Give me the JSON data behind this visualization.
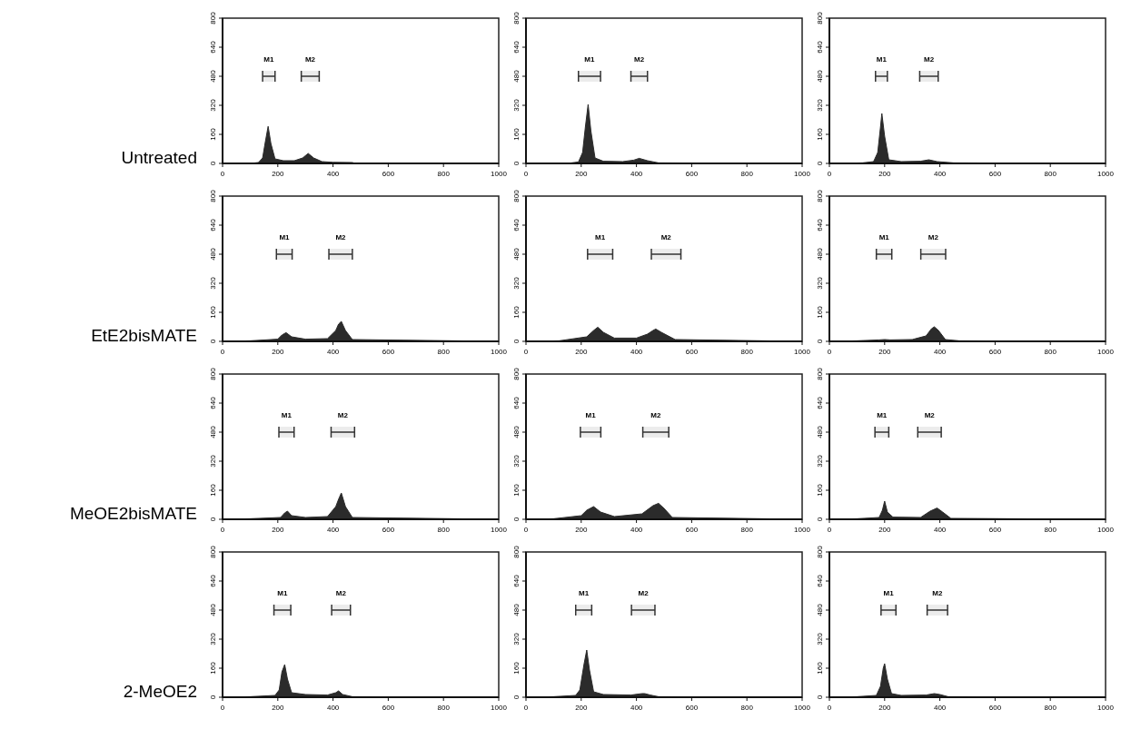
{
  "chart_data": [
    {
      "type": "area",
      "title": "Untreated",
      "color": "#2b2b2b",
      "x": [
        0,
        100,
        130,
        145,
        155,
        165,
        175,
        190,
        220,
        260,
        290,
        310,
        330,
        360,
        400,
        470,
        480,
        1000
      ],
      "values": [
        0,
        0,
        5,
        30,
        120,
        204,
        110,
        25,
        15,
        15,
        30,
        55,
        30,
        10,
        6,
        5,
        0,
        0
      ],
      "xlim": [
        0,
        1000
      ],
      "xticks": [
        0,
        200,
        400,
        600,
        800,
        1000
      ],
      "ylim": [
        0,
        800
      ],
      "yticks": [
        0,
        160,
        320,
        480,
        640,
        800
      ],
      "bands": [
        {
          "axis": "x",
          "from": 145,
          "to": 190,
          "label": "M1"
        },
        {
          "axis": "x",
          "from": 285,
          "to": 350,
          "label": "M2"
        }
      ]
    },
    {
      "type": "area",
      "color": "#2b2b2b",
      "x": [
        0,
        150,
        190,
        205,
        215,
        225,
        235,
        250,
        280,
        350,
        390,
        410,
        440,
        480,
        1000
      ],
      "values": [
        0,
        0,
        8,
        60,
        200,
        325,
        180,
        30,
        12,
        10,
        18,
        28,
        15,
        3,
        0
      ],
      "xlim": [
        0,
        1000
      ],
      "xticks": [
        0,
        200,
        400,
        600,
        800,
        1000
      ],
      "ylim": [
        0,
        800
      ],
      "yticks": [
        0,
        160,
        320,
        480,
        640,
        800
      ],
      "bands": [
        {
          "axis": "x",
          "from": 190,
          "to": 270,
          "label": "M1"
        },
        {
          "axis": "x",
          "from": 380,
          "to": 440,
          "label": "M2"
        }
      ]
    },
    {
      "type": "area",
      "color": "#2b2b2b",
      "x": [
        0,
        120,
        160,
        175,
        185,
        190,
        200,
        215,
        260,
        330,
        360,
        390,
        450,
        1000
      ],
      "values": [
        0,
        3,
        10,
        60,
        200,
        275,
        150,
        20,
        10,
        12,
        20,
        10,
        3,
        0
      ],
      "xlim": [
        0,
        1000
      ],
      "xticks": [
        0,
        200,
        400,
        600,
        800,
        1000
      ],
      "ylim": [
        0,
        800
      ],
      "yticks": [
        0,
        160,
        320,
        480,
        640,
        800
      ],
      "bands": [
        {
          "axis": "x",
          "from": 167,
          "to": 210,
          "label": "M1"
        },
        {
          "axis": "x",
          "from": 327,
          "to": 394,
          "label": "M2"
        }
      ]
    },
    {
      "type": "area",
      "title": "EtE2bisMATE",
      "color": "#2b2b2b",
      "x": [
        0,
        100,
        200,
        215,
        230,
        250,
        300,
        380,
        410,
        420,
        430,
        445,
        470,
        1000
      ],
      "values": [
        0,
        3,
        12,
        35,
        48,
        25,
        12,
        15,
        60,
        95,
        110,
        60,
        10,
        0
      ],
      "xlim": [
        0,
        1000
      ],
      "xticks": [
        0,
        200,
        400,
        600,
        800,
        1000
      ],
      "ylim": [
        0,
        800
      ],
      "yticks": [
        0,
        160,
        320,
        480,
        640,
        800
      ],
      "bands": [
        {
          "axis": "x",
          "from": 195,
          "to": 252,
          "label": "M1"
        },
        {
          "axis": "x",
          "from": 385,
          "to": 470,
          "label": "M2"
        }
      ]
    },
    {
      "type": "area",
      "color": "#2b2b2b",
      "x": [
        0,
        120,
        220,
        245,
        260,
        280,
        320,
        400,
        440,
        460,
        470,
        490,
        540,
        1000
      ],
      "values": [
        0,
        3,
        25,
        60,
        78,
        50,
        18,
        18,
        40,
        60,
        68,
        50,
        10,
        0
      ],
      "xlim": [
        0,
        1000
      ],
      "xticks": [
        0,
        200,
        400,
        600,
        800,
        1000
      ],
      "ylim": [
        0,
        800
      ],
      "yticks": [
        0,
        160,
        320,
        480,
        640,
        800
      ],
      "bands": [
        {
          "axis": "x",
          "from": 223,
          "to": 314,
          "label": "M1"
        },
        {
          "axis": "x",
          "from": 454,
          "to": 561,
          "label": "M2"
        }
      ]
    },
    {
      "type": "area",
      "color": "#2b2b2b",
      "x": [
        0,
        100,
        180,
        200,
        220,
        300,
        350,
        370,
        380,
        395,
        420,
        470,
        1000
      ],
      "values": [
        0,
        3,
        8,
        10,
        8,
        10,
        30,
        70,
        80,
        60,
        10,
        3,
        0
      ],
      "xlim": [
        0,
        1000
      ],
      "xticks": [
        0,
        200,
        400,
        600,
        800,
        1000
      ],
      "ylim": [
        0,
        800
      ],
      "yticks": [
        0,
        160,
        320,
        480,
        640,
        800
      ],
      "bands": [
        {
          "axis": "x",
          "from": 170,
          "to": 226,
          "label": "M1"
        },
        {
          "axis": "x",
          "from": 331,
          "to": 421,
          "label": "M2"
        }
      ]
    },
    {
      "type": "area",
      "title": "MeOE2bisMATE",
      "color": "#2b2b2b",
      "x": [
        0,
        100,
        210,
        225,
        235,
        250,
        300,
        380,
        410,
        420,
        430,
        445,
        470,
        1000
      ],
      "values": [
        0,
        3,
        10,
        35,
        45,
        20,
        10,
        15,
        70,
        110,
        145,
        70,
        10,
        0
      ],
      "xlim": [
        0,
        1000
      ],
      "xticks": [
        0,
        200,
        400,
        600,
        800,
        1000
      ],
      "ylim": [
        0,
        800
      ],
      "yticks": [
        0,
        160,
        320,
        480,
        640,
        800
      ],
      "bands": [
        {
          "axis": "x",
          "from": 204,
          "to": 259,
          "label": "M1"
        },
        {
          "axis": "x",
          "from": 393,
          "to": 478,
          "label": "M2"
        }
      ]
    },
    {
      "type": "area",
      "color": "#2b2b2b",
      "x": [
        0,
        100,
        200,
        220,
        245,
        270,
        320,
        420,
        460,
        480,
        500,
        530,
        1000
      ],
      "values": [
        0,
        3,
        20,
        50,
        70,
        40,
        15,
        30,
        75,
        88,
        60,
        10,
        0
      ],
      "xlim": [
        0,
        1000
      ],
      "xticks": [
        0,
        200,
        400,
        600,
        800,
        1000
      ],
      "ylim": [
        0,
        800
      ],
      "yticks": [
        0,
        160,
        320,
        480,
        640,
        800
      ],
      "bands": [
        {
          "axis": "x",
          "from": 197,
          "to": 271,
          "label": "M1"
        },
        {
          "axis": "x",
          "from": 423,
          "to": 517,
          "label": "M2"
        }
      ]
    },
    {
      "type": "area",
      "color": "#2b2b2b",
      "x": [
        0,
        100,
        180,
        192,
        200,
        210,
        230,
        330,
        365,
        390,
        410,
        440,
        1000
      ],
      "values": [
        0,
        3,
        10,
        50,
        100,
        40,
        12,
        10,
        45,
        62,
        40,
        5,
        0
      ],
      "xlim": [
        0,
        1000
      ],
      "xticks": [
        0,
        200,
        400,
        600,
        800,
        1000
      ],
      "ylim": [
        0,
        800
      ],
      "yticks": [
        0,
        160,
        320,
        480,
        640,
        800
      ],
      "bands": [
        {
          "axis": "x",
          "from": 165,
          "to": 215,
          "label": "M1"
        },
        {
          "axis": "x",
          "from": 320,
          "to": 405,
          "label": "M2"
        }
      ]
    },
    {
      "type": "area",
      "title": "2-MeOE2",
      "color": "#2b2b2b",
      "x": [
        0,
        100,
        190,
        205,
        215,
        225,
        235,
        250,
        300,
        380,
        410,
        420,
        435,
        470,
        1000
      ],
      "values": [
        0,
        3,
        10,
        40,
        140,
        180,
        100,
        25,
        15,
        12,
        25,
        35,
        15,
        3,
        0
      ],
      "xlim": [
        0,
        1000
      ],
      "xticks": [
        0,
        200,
        400,
        600,
        800,
        1000
      ],
      "ylim": [
        0,
        800
      ],
      "yticks": [
        0,
        160,
        320,
        480,
        640,
        800
      ],
      "bands": [
        {
          "axis": "x",
          "from": 186,
          "to": 247,
          "label": "M1"
        },
        {
          "axis": "x",
          "from": 395,
          "to": 463,
          "label": "M2"
        }
      ]
    },
    {
      "type": "area",
      "color": "#2b2b2b",
      "x": [
        0,
        100,
        180,
        195,
        210,
        220,
        230,
        245,
        280,
        380,
        420,
        430,
        450,
        480,
        1000
      ],
      "values": [
        0,
        3,
        10,
        40,
        180,
        260,
        150,
        30,
        15,
        12,
        20,
        20,
        12,
        3,
        0
      ],
      "xlim": [
        0,
        1000
      ],
      "xticks": [
        0,
        200,
        400,
        600,
        800,
        1000
      ],
      "ylim": [
        0,
        800
      ],
      "yticks": [
        0,
        160,
        320,
        480,
        640,
        800
      ],
      "bands": [
        {
          "axis": "x",
          "from": 180,
          "to": 238,
          "label": "M1"
        },
        {
          "axis": "x",
          "from": 382,
          "to": 467,
          "label": "M2"
        }
      ]
    },
    {
      "type": "area",
      "color": "#2b2b2b",
      "x": [
        0,
        100,
        170,
        185,
        195,
        200,
        210,
        225,
        260,
        350,
        380,
        400,
        430,
        1000
      ],
      "values": [
        0,
        3,
        10,
        60,
        160,
        185,
        100,
        20,
        10,
        12,
        20,
        15,
        3,
        0
      ],
      "xlim": [
        0,
        1000
      ],
      "xticks": [
        0,
        200,
        400,
        600,
        800,
        1000
      ],
      "ylim": [
        0,
        800
      ],
      "yticks": [
        0,
        160,
        320,
        480,
        640,
        800
      ],
      "bands": [
        {
          "axis": "x",
          "from": 187,
          "to": 241,
          "label": "M1"
        },
        {
          "axis": "x",
          "from": 354,
          "to": 428,
          "label": "M2"
        }
      ]
    }
  ]
}
